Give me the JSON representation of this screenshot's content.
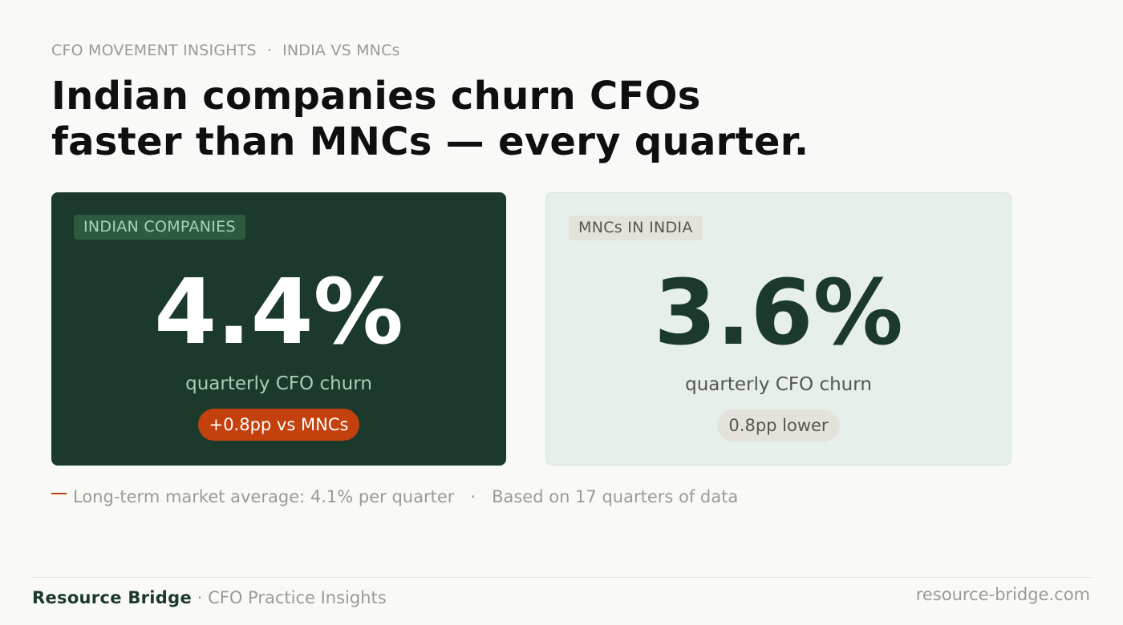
{
  "eyebrow": {
    "section": "CFO MOVEMENT INSIGHTS",
    "separator": "·",
    "topic": "INDIA VS MNCs"
  },
  "headline": {
    "line1": "Indian companies churn CFOs",
    "line2": "faster than MNCs — every quarter."
  },
  "cards": {
    "indian": {
      "tag": "INDIAN COMPANIES",
      "value": "4.4%",
      "caption": "quarterly CFO churn",
      "badge": "+0.8pp vs MNCs"
    },
    "mnc": {
      "tag": "MNCs IN INDIA",
      "value": "3.6%",
      "caption": "quarterly CFO churn",
      "badge": "0.8pp lower"
    }
  },
  "note": {
    "average": "Long-term market average: 4.1% per quarter",
    "separator": "·",
    "basis": "Based on 17 quarters of data"
  },
  "footer": {
    "brand": "Resource Bridge",
    "separator": "·",
    "tagline": "CFO Practice Insights",
    "url": "resource-bridge.com"
  },
  "colors": {
    "background": "#f9f9f7",
    "dark_green": "#1b3a2b",
    "light_green": "#e6efea",
    "accent_orange": "#c4410e",
    "muted_text": "#9a9a96"
  }
}
